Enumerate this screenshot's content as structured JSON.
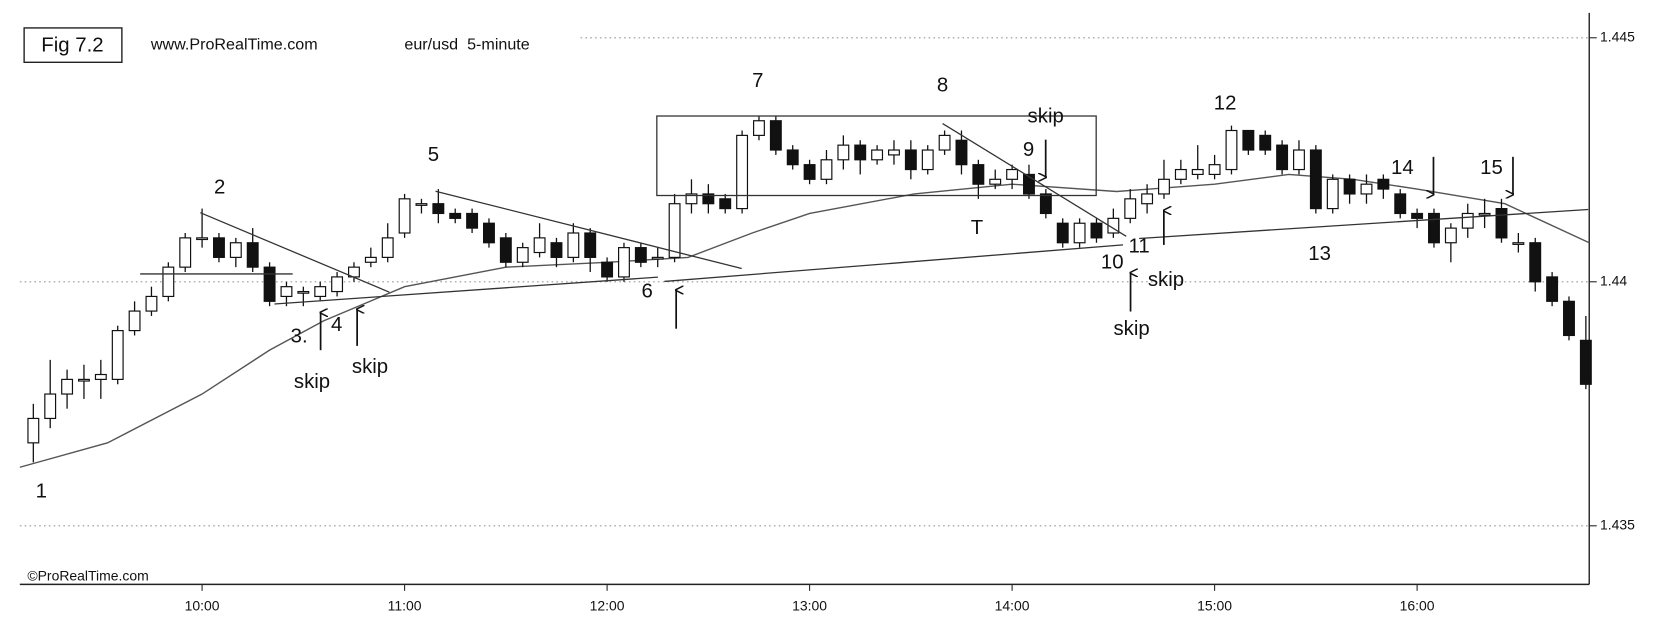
{
  "chart_data": {
    "type": "candlestick",
    "title": "Fig 7.2",
    "source": "www.ProRealTime.com",
    "instrument": "eur/usd  5-minute",
    "watermark": "©ProRealTime.com",
    "x": [
      550,
      555,
      560,
      565,
      570,
      575,
      580,
      585,
      590,
      595,
      600,
      605,
      610,
      615,
      620,
      625,
      630,
      635,
      640,
      645,
      650,
      655,
      660,
      665,
      670,
      675,
      680,
      685,
      690,
      695,
      700,
      705,
      710,
      715,
      720,
      725,
      730,
      735,
      740,
      745,
      750,
      755,
      760,
      765,
      770,
      775,
      780,
      785,
      790,
      795,
      800,
      805,
      810,
      815,
      820,
      825,
      830,
      835,
      840,
      845,
      850,
      855,
      860,
      865,
      870,
      875,
      880,
      885,
      890,
      895,
      900,
      905,
      910,
      915,
      920,
      925,
      930,
      935,
      940,
      945,
      950,
      955,
      960,
      965,
      970,
      975,
      980,
      985,
      990,
      995,
      1000,
      1005,
      1010
    ],
    "open": [
      1.4367,
      1.4372,
      1.4377,
      1.438,
      1.438,
      1.438,
      1.439,
      1.4394,
      1.4397,
      1.4403,
      1.4409,
      1.4409,
      1.4405,
      1.4408,
      1.4403,
      1.4397,
      1.4398,
      1.4397,
      1.4398,
      1.4401,
      1.4404,
      1.4405,
      1.441,
      1.4416,
      1.4416,
      1.4414,
      1.4414,
      1.4412,
      1.4409,
      1.4404,
      1.4406,
      1.4408,
      1.4405,
      1.441,
      1.4404,
      1.4401,
      1.4407,
      1.4405,
      1.4405,
      1.4416,
      1.4418,
      1.4417,
      1.4415,
      1.443,
      1.4433,
      1.4427,
      1.4424,
      1.4421,
      1.4425,
      1.4428,
      1.4425,
      1.4426,
      1.4427,
      1.4423,
      1.4427,
      1.4429,
      1.4424,
      1.442,
      1.4421,
      1.4422,
      1.4418,
      1.4412,
      1.4408,
      1.4412,
      1.441,
      1.4413,
      1.4416,
      1.4418,
      1.4421,
      1.4422,
      1.4422,
      1.4423,
      1.4431,
      1.443,
      1.4428,
      1.4423,
      1.4427,
      1.4415,
      1.4421,
      1.4418,
      1.4421,
      1.4418,
      1.4414,
      1.4414,
      1.4408,
      1.4411,
      1.4414,
      1.4415,
      1.4408,
      1.4408,
      1.4401,
      1.4396,
      1.4388
    ],
    "high": [
      1.4375,
      1.4384,
      1.4382,
      1.4383,
      1.4384,
      1.4391,
      1.4396,
      1.4399,
      1.4404,
      1.441,
      1.4415,
      1.441,
      1.4409,
      1.4411,
      1.4404,
      1.44,
      1.4399,
      1.44,
      1.4402,
      1.4404,
      1.4407,
      1.4412,
      1.4418,
      1.4417,
      1.4419,
      1.4415,
      1.4415,
      1.4413,
      1.441,
      1.4408,
      1.4412,
      1.4409,
      1.4412,
      1.4411,
      1.4405,
      1.4408,
      1.4408,
      1.4407,
      1.4418,
      1.4421,
      1.442,
      1.4418,
      1.4431,
      1.4434,
      1.4434,
      1.4428,
      1.4425,
      1.4427,
      1.443,
      1.4429,
      1.4428,
      1.4429,
      1.4429,
      1.4428,
      1.4431,
      1.4431,
      1.4425,
      1.4423,
      1.4424,
      1.4424,
      1.4419,
      1.4413,
      1.4413,
      1.4413,
      1.4415,
      1.4419,
      1.442,
      1.4425,
      1.4425,
      1.4428,
      1.4426,
      1.4432,
      1.4431,
      1.4431,
      1.4429,
      1.4429,
      1.4428,
      1.4422,
      1.4422,
      1.4422,
      1.4422,
      1.4419,
      1.4415,
      1.4415,
      1.4412,
      1.4416,
      1.4417,
      1.4417,
      1.441,
      1.4409,
      1.4402,
      1.4397,
      1.4393
    ],
    "low": [
      1.4363,
      1.437,
      1.4374,
      1.4376,
      1.4376,
      1.4379,
      1.4389,
      1.4393,
      1.4396,
      1.4402,
      1.4407,
      1.4404,
      1.4403,
      1.4402,
      1.4395,
      1.4395,
      1.4395,
      1.4396,
      1.4397,
      1.44,
      1.4403,
      1.4404,
      1.4409,
      1.4414,
      1.4412,
      1.4412,
      1.441,
      1.4407,
      1.4403,
      1.4403,
      1.4405,
      1.4403,
      1.4404,
      1.4402,
      1.44,
      1.44,
      1.4403,
      1.4403,
      1.4404,
      1.4414,
      1.4414,
      1.4414,
      1.4414,
      1.4429,
      1.4426,
      1.4423,
      1.442,
      1.442,
      1.4423,
      1.4422,
      1.4424,
      1.4424,
      1.4421,
      1.4422,
      1.4426,
      1.4422,
      1.4417,
      1.4419,
      1.4419,
      1.4417,
      1.4413,
      1.4407,
      1.4407,
      1.4408,
      1.4409,
      1.4412,
      1.4414,
      1.4417,
      1.442,
      1.4421,
      1.4421,
      1.4422,
      1.4426,
      1.4426,
      1.4422,
      1.4422,
      1.4414,
      1.4414,
      1.4416,
      1.4416,
      1.4417,
      1.4413,
      1.4411,
      1.4407,
      1.4404,
      1.4409,
      1.4411,
      1.4408,
      1.4406,
      1.4398,
      1.4395,
      1.4388,
      1.4378
    ],
    "close": [
      1.4372,
      1.4377,
      1.438,
      1.438,
      1.4381,
      1.439,
      1.4394,
      1.4397,
      1.4403,
      1.4409,
      1.4409,
      1.4405,
      1.4408,
      1.4403,
      1.4396,
      1.4399,
      1.4398,
      1.4399,
      1.4401,
      1.4403,
      1.4405,
      1.4409,
      1.4417,
      1.4416,
      1.4414,
      1.4413,
      1.4411,
      1.4408,
      1.4404,
      1.4407,
      1.4409,
      1.4405,
      1.441,
      1.4405,
      1.4401,
      1.4407,
      1.4404,
      1.4405,
      1.4416,
      1.4418,
      1.4416,
      1.4415,
      1.443,
      1.4433,
      1.4427,
      1.4424,
      1.4421,
      1.4425,
      1.4428,
      1.4425,
      1.4427,
      1.4427,
      1.4423,
      1.4427,
      1.443,
      1.4424,
      1.442,
      1.4421,
      1.4423,
      1.4418,
      1.4414,
      1.4408,
      1.4412,
      1.4409,
      1.4413,
      1.4417,
      1.4418,
      1.4421,
      1.4423,
      1.4423,
      1.4424,
      1.4431,
      1.4427,
      1.4427,
      1.4423,
      1.4427,
      1.4415,
      1.4421,
      1.4418,
      1.442,
      1.4419,
      1.4414,
      1.4413,
      1.4408,
      1.4411,
      1.4414,
      1.4414,
      1.4409,
      1.4408,
      1.44,
      1.4396,
      1.4389,
      1.4379
    ],
    "up_color": "#ffffff",
    "down_color": "#111111",
    "moving_average": {
      "color": "#555555",
      "x": [
        546,
        572,
        600,
        620,
        636,
        660,
        690,
        720,
        744,
        763,
        780,
        811,
        840,
        871,
        900,
        922,
        941,
        960,
        986,
        1011
      ],
      "values": [
        1.4362,
        1.4367,
        1.4377,
        1.4386,
        1.4392,
        1.4399,
        1.4403,
        1.4404,
        1.4405,
        1.441,
        1.4414,
        1.4418,
        1.442,
        1.44185,
        1.442,
        1.4422,
        1.4421,
        1.4419,
        1.4416,
        1.4408
      ]
    },
    "xlim": [
      546,
      1011
    ],
    "xticks": [
      {
        "value": 600,
        "label": "10:00"
      },
      {
        "value": 660,
        "label": "11:00"
      },
      {
        "value": 720,
        "label": "12:00"
      },
      {
        "value": 780,
        "label": "13:00"
      },
      {
        "value": 840,
        "label": "14:00"
      },
      {
        "value": 900,
        "label": "15:00"
      },
      {
        "value": 960,
        "label": "16:00"
      }
    ],
    "ylim": [
      1.4338,
      1.4454
    ],
    "yticks": [
      1.435,
      1.44,
      1.445
    ],
    "grid": true,
    "annotations": [
      "1",
      "2",
      "3.",
      "4",
      "skip",
      "skip",
      "5",
      "6",
      "7",
      "8",
      "skip",
      "9",
      "T",
      "10",
      "11",
      "skip",
      "skip",
      "12",
      "13",
      "14",
      "15"
    ]
  }
}
